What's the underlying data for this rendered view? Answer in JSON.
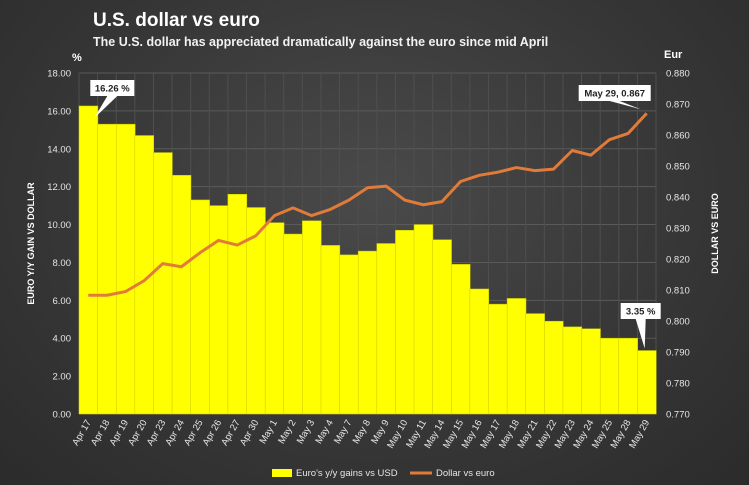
{
  "header": {
    "title": "U.S. dollar  vs euro",
    "subtitle": "The U.S. dollar has appreciated dramatically  against the euro since mid April"
  },
  "chart_data": {
    "type": "bar",
    "title": "U.S. dollar  vs euro",
    "subtitle": "The U.S. dollar has appreciated dramatically  against the euro since mid April",
    "left_unit": "%",
    "right_unit": "Eur",
    "ylabel": "EURO Y/Y GAIN VS DOLLAR",
    "y2label": "DOLLAR VS EURO",
    "ylim": [
      0,
      18
    ],
    "y2lim": [
      0.77,
      0.88
    ],
    "yticks": [
      "0.00",
      "2.00",
      "4.00",
      "6.00",
      "8.00",
      "10.00",
      "12.00",
      "14.00",
      "16.00",
      "18.00"
    ],
    "y2ticks": [
      "0.770",
      "0.780",
      "0.790",
      "0.800",
      "0.810",
      "0.820",
      "0.830",
      "0.840",
      "0.850",
      "0.860",
      "0.870",
      "0.880"
    ],
    "categories": [
      "Apr 17",
      "Apr 18",
      "Apr 19",
      "Apr 20",
      "Apr 23",
      "Apr 24",
      "Apr 25",
      "Apr 26",
      "Apr 27",
      "Apr 30",
      "May 1",
      "May 2",
      "May 3",
      "May 4",
      "May 7",
      "May 8",
      "May 9",
      "May 10",
      "May 11",
      "May 14",
      "May 15",
      "May 16",
      "May 17",
      "May 18",
      "May 21",
      "May 22",
      "May 23",
      "May 24",
      "May 25",
      "May 28",
      "May 29"
    ],
    "series": [
      {
        "name": "Euro's y/y gains vs USD",
        "kind": "bar",
        "axis": "left",
        "color": "#ffff00",
        "values": [
          16.26,
          15.3,
          15.3,
          14.7,
          13.8,
          12.6,
          11.3,
          11.0,
          11.6,
          10.9,
          10.1,
          9.5,
          10.2,
          8.9,
          8.4,
          8.6,
          9.0,
          9.7,
          10.0,
          9.2,
          7.9,
          6.6,
          5.8,
          6.1,
          5.3,
          4.9,
          4.6,
          4.5,
          4.0,
          4.0,
          3.35
        ]
      },
      {
        "name": "Dollar vs euro",
        "kind": "line",
        "axis": "right",
        "color": "#e07b39",
        "values": [
          0.8083,
          0.8083,
          0.8095,
          0.813,
          0.8185,
          0.8175,
          0.822,
          0.826,
          0.8245,
          0.8275,
          0.834,
          0.8365,
          0.834,
          0.836,
          0.839,
          0.843,
          0.8435,
          0.839,
          0.8375,
          0.8385,
          0.845,
          0.847,
          0.848,
          0.8495,
          0.8485,
          0.849,
          0.855,
          0.8535,
          0.8585,
          0.8605,
          0.867
        ]
      }
    ],
    "annotations": [
      {
        "text": "16.26 %",
        "series": 0,
        "index": 0
      },
      {
        "text": "3.35 %",
        "series": 0,
        "index": 30
      },
      {
        "text": "May 29, 0.867",
        "series": 1,
        "index": 30
      }
    ],
    "legend_position": "bottom",
    "grid": true
  }
}
